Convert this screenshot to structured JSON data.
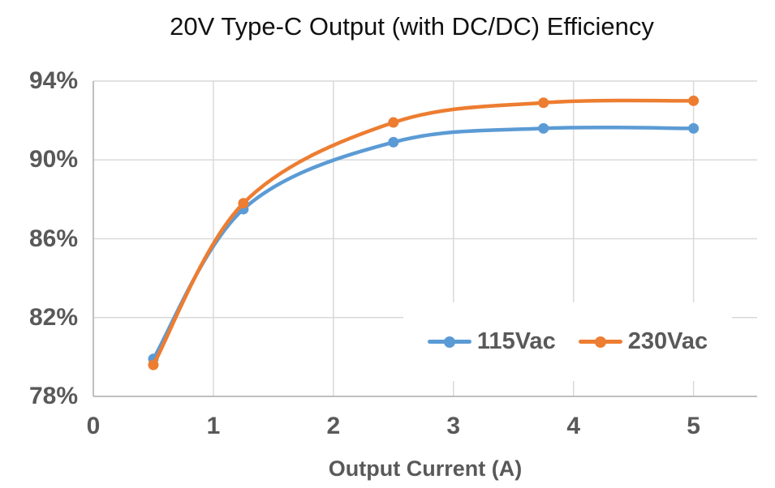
{
  "chart_data": {
    "type": "line",
    "title": "20V Type-C Output (with DC/DC) Efficiency",
    "xlabel": "Output Current (A)",
    "ylabel": "",
    "x": [
      0.5,
      1.25,
      2.5,
      3.75,
      5
    ],
    "series": [
      {
        "name": "115Vac",
        "color": "#5B9BD5",
        "values": [
          79.9,
          87.5,
          90.9,
          91.6,
          91.6
        ]
      },
      {
        "name": "230Vac",
        "color": "#ED7D31",
        "values": [
          79.6,
          87.8,
          91.9,
          92.9,
          93.0
        ]
      }
    ],
    "x_ticks": [
      0,
      1,
      2,
      3,
      4,
      5
    ],
    "y_ticks": [
      78,
      82,
      86,
      90,
      94
    ],
    "y_tick_suffix": "%",
    "xlim": [
      0,
      5.53
    ],
    "ylim": [
      78,
      94
    ],
    "grid": true,
    "smooth": true,
    "legend_position": "inside-bottom-right"
  },
  "colors": {
    "series_blue": "#5B9BD5",
    "series_orange": "#ED7D31",
    "axis_text": "#595959",
    "title_text": "#111111",
    "gridline": "#D9D9D9",
    "axis_line": "#BFBFBF",
    "background": "#FFFFFF"
  }
}
